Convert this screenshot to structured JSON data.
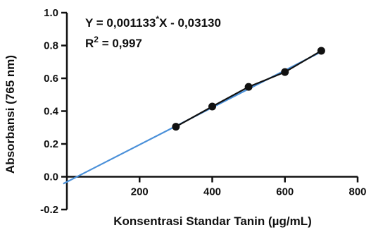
{
  "chart_data": {
    "type": "scatter",
    "xlabel": "Konsentrasi Standar Tanin (µg/mL)",
    "ylabel": "Absorbansi (765 nm)",
    "xlim": [
      0,
      800
    ],
    "ylim": [
      -0.2,
      1.0
    ],
    "x_ticks": [
      200,
      400,
      600,
      800
    ],
    "x_tick_labels": [
      "200",
      "400",
      "600",
      "800"
    ],
    "y_ticks": [
      -0.2,
      0.0,
      0.2,
      0.4,
      0.6,
      0.8,
      1.0
    ],
    "y_tick_labels": [
      "-0.2",
      "0.0",
      "0.2",
      "0.4",
      "0.6",
      "0.8",
      "1.0"
    ],
    "grid": false,
    "series": [
      {
        "x": [
          300,
          400,
          500,
          600,
          700
        ],
        "y": [
          0.305,
          0.428,
          0.548,
          0.638,
          0.768
        ],
        "color": "#111111",
        "marker": "circle",
        "connected": true
      }
    ],
    "fit_line": {
      "slope": 0.001133,
      "intercept": -0.0313,
      "x_range": [
        -10,
        700
      ],
      "color": "#4a90d9"
    },
    "annotations": {
      "equation_prefix": "Y = 0,001133",
      "equation_super": "*",
      "equation_suffix": "X - 0,03130",
      "r2_prefix": "R",
      "r2_super": "2",
      "r2_suffix": " = 0,997"
    }
  }
}
